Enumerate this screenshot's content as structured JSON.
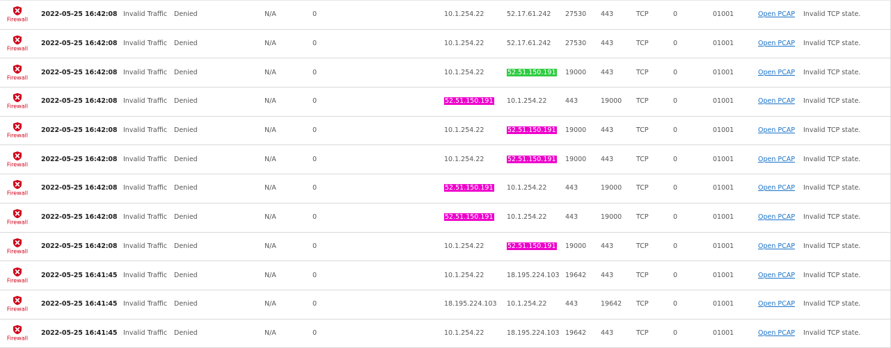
{
  "colors": {
    "firewall_red": "#d0021b",
    "link_blue": "#1a73c8",
    "highlight_green": "#2ecc40",
    "highlight_pink": "#ee00cc"
  },
  "rows": [
    {
      "type_icon": "firewall-x-icon",
      "type": "Firewall",
      "time": "2022-05-25 16:42:08",
      "category": "Invalid Traffic",
      "action": "Denied",
      "user": "N/A",
      "zero": "0",
      "src_ip": "10.1.254.22",
      "dst_ip": "52.17.61.242",
      "src_port": "27530",
      "dst_port": "443",
      "protocol": "TCP",
      "zero2": "0",
      "rule": "01001",
      "pcap": "Open PCAP",
      "message": "Invalid TCP state.",
      "src_hl": "",
      "dst_hl": ""
    },
    {
      "type_icon": "firewall-x-icon",
      "type": "Firewall",
      "time": "2022-05-25 16:42:08",
      "category": "Invalid Traffic",
      "action": "Denied",
      "user": "N/A",
      "zero": "0",
      "src_ip": "10.1.254.22",
      "dst_ip": "52.17.61.242",
      "src_port": "27530",
      "dst_port": "443",
      "protocol": "TCP",
      "zero2": "0",
      "rule": "01001",
      "pcap": "Open PCAP",
      "message": "Invalid TCP state.",
      "src_hl": "",
      "dst_hl": ""
    },
    {
      "type_icon": "firewall-x-icon",
      "type": "Firewall",
      "time": "2022-05-25 16:42:08",
      "category": "Invalid Traffic",
      "action": "Denied",
      "user": "N/A",
      "zero": "0",
      "src_ip": "10.1.254.22",
      "dst_ip": "52.51.150.191",
      "src_port": "19000",
      "dst_port": "443",
      "protocol": "TCP",
      "zero2": "0",
      "rule": "01001",
      "pcap": "Open PCAP",
      "message": "Invalid TCP state.",
      "src_hl": "",
      "dst_hl": "green"
    },
    {
      "type_icon": "firewall-x-icon",
      "type": "Firewall",
      "time": "2022-05-25 16:42:08",
      "category": "Invalid Traffic",
      "action": "Denied",
      "user": "N/A",
      "zero": "0",
      "src_ip": "52.51.150.191",
      "dst_ip": "10.1.254.22",
      "src_port": "443",
      "dst_port": "19000",
      "protocol": "TCP",
      "zero2": "0",
      "rule": "01001",
      "pcap": "Open PCAP",
      "message": "Invalid TCP state.",
      "src_hl": "pink",
      "dst_hl": ""
    },
    {
      "type_icon": "firewall-x-icon",
      "type": "Firewall",
      "time": "2022-05-25 16:42:08",
      "category": "Invalid Traffic",
      "action": "Denied",
      "user": "N/A",
      "zero": "0",
      "src_ip": "10.1.254.22",
      "dst_ip": "52.51.150.191",
      "src_port": "19000",
      "dst_port": "443",
      "protocol": "TCP",
      "zero2": "0",
      "rule": "01001",
      "pcap": "Open PCAP",
      "message": "Invalid TCP state.",
      "src_hl": "",
      "dst_hl": "pink"
    },
    {
      "type_icon": "firewall-x-icon",
      "type": "Firewall",
      "time": "2022-05-25 16:42:08",
      "category": "Invalid Traffic",
      "action": "Denied",
      "user": "N/A",
      "zero": "0",
      "src_ip": "10.1.254.22",
      "dst_ip": "52.51.150.191",
      "src_port": "19000",
      "dst_port": "443",
      "protocol": "TCP",
      "zero2": "0",
      "rule": "01001",
      "pcap": "Open PCAP",
      "message": "Invalid TCP state.",
      "src_hl": "",
      "dst_hl": "pink"
    },
    {
      "type_icon": "firewall-x-icon",
      "type": "Firewall",
      "time": "2022-05-25 16:42:08",
      "category": "Invalid Traffic",
      "action": "Denied",
      "user": "N/A",
      "zero": "0",
      "src_ip": "52.51.150.191",
      "dst_ip": "10.1.254.22",
      "src_port": "443",
      "dst_port": "19000",
      "protocol": "TCP",
      "zero2": "0",
      "rule": "01001",
      "pcap": "Open PCAP",
      "message": "Invalid TCP state.",
      "src_hl": "pink",
      "dst_hl": ""
    },
    {
      "type_icon": "firewall-x-icon",
      "type": "Firewall",
      "time": "2022-05-25 16:42:08",
      "category": "Invalid Traffic",
      "action": "Denied",
      "user": "N/A",
      "zero": "0",
      "src_ip": "52.51.150.191",
      "dst_ip": "10.1.254.22",
      "src_port": "443",
      "dst_port": "19000",
      "protocol": "TCP",
      "zero2": "0",
      "rule": "01001",
      "pcap": "Open PCAP",
      "message": "Invalid TCP state.",
      "src_hl": "pink",
      "dst_hl": ""
    },
    {
      "type_icon": "firewall-x-icon",
      "type": "Firewall",
      "time": "2022-05-25 16:42:08",
      "category": "Invalid Traffic",
      "action": "Denied",
      "user": "N/A",
      "zero": "0",
      "src_ip": "10.1.254.22",
      "dst_ip": "52.51.150.191",
      "src_port": "19000",
      "dst_port": "443",
      "protocol": "TCP",
      "zero2": "0",
      "rule": "01001",
      "pcap": "Open PCAP",
      "message": "Invalid TCP state.",
      "src_hl": "",
      "dst_hl": "pink"
    },
    {
      "type_icon": "firewall-x-icon",
      "type": "Firewall",
      "time": "2022-05-25 16:41:45",
      "category": "Invalid Traffic",
      "action": "Denied",
      "user": "N/A",
      "zero": "0",
      "src_ip": "10.1.254.22",
      "dst_ip": "18.195.224.103",
      "src_port": "19642",
      "dst_port": "443",
      "protocol": "TCP",
      "zero2": "0",
      "rule": "01001",
      "pcap": "Open PCAP",
      "message": "Invalid TCP state.",
      "src_hl": "",
      "dst_hl": ""
    },
    {
      "type_icon": "firewall-x-icon",
      "type": "Firewall",
      "time": "2022-05-25 16:41:45",
      "category": "Invalid Traffic",
      "action": "Denied",
      "user": "N/A",
      "zero": "0",
      "src_ip": "18.195.224.103",
      "dst_ip": "10.1.254.22",
      "src_port": "443",
      "dst_port": "19642",
      "protocol": "TCP",
      "zero2": "0",
      "rule": "01001",
      "pcap": "Open PCAP",
      "message": "Invalid TCP state.",
      "src_hl": "",
      "dst_hl": ""
    },
    {
      "type_icon": "firewall-x-icon",
      "type": "Firewall",
      "time": "2022-05-25 16:41:45",
      "category": "Invalid Traffic",
      "action": "Denied",
      "user": "N/A",
      "zero": "0",
      "src_ip": "10.1.254.22",
      "dst_ip": "18.195.224.103",
      "src_port": "19642",
      "dst_port": "443",
      "protocol": "TCP",
      "zero2": "0",
      "rule": "01001",
      "pcap": "Open PCAP",
      "message": "Invalid TCP state.",
      "src_hl": "",
      "dst_hl": ""
    }
  ]
}
